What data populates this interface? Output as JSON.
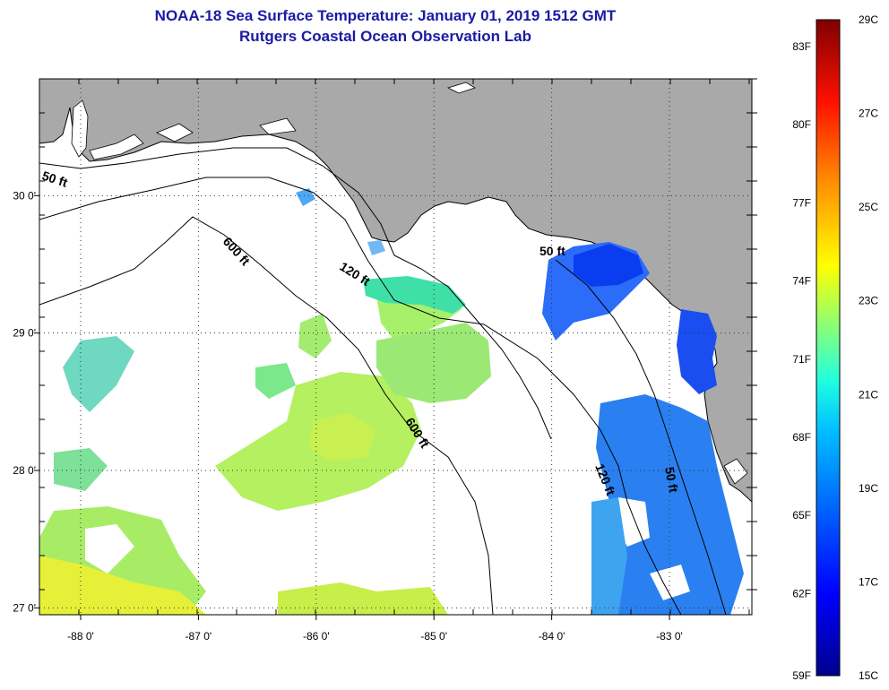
{
  "header": {
    "title": "NOAA-18 Sea Surface Temperature:  January 01, 2019 1512 GMT",
    "subtitle": "Rutgers Coastal Ocean Observation Lab"
  },
  "map": {
    "lon_ticks": [
      {
        "value": -88,
        "label": "-88 0'"
      },
      {
        "value": -87,
        "label": "-87 0'"
      },
      {
        "value": -86,
        "label": "-86 0'"
      },
      {
        "value": -85,
        "label": "-85 0'"
      },
      {
        "value": -84,
        "label": "-84 0'"
      },
      {
        "value": -83,
        "label": "-83 0'"
      }
    ],
    "lat_ticks": [
      {
        "value": 30,
        "label": "30 0'"
      },
      {
        "value": 29,
        "label": "29 0'"
      },
      {
        "value": 28,
        "label": "28 0'"
      },
      {
        "value": 27,
        "label": "27 0'"
      }
    ],
    "lon_range": [
      -88.35,
      -82.3
    ],
    "lat_range": [
      26.95,
      30.85
    ],
    "colors": {
      "land": "#a9a9a9",
      "no_data_ocean": "#ffffff",
      "grid": "#333333"
    },
    "contour_labels": [
      {
        "text": "50 ft",
        "id": "contour-50ft-west"
      },
      {
        "text": "600 ft",
        "id": "contour-600ft-north"
      },
      {
        "text": "120 ft",
        "id": "contour-120ft-north"
      },
      {
        "text": "50 ft",
        "id": "contour-50ft-east"
      },
      {
        "text": "600 ft",
        "id": "contour-600ft-south"
      },
      {
        "text": "120 ft",
        "id": "contour-120ft-south"
      },
      {
        "text": "50 ft",
        "id": "contour-50ft-south"
      }
    ]
  },
  "colorbar": {
    "celsius": [
      "29C",
      "27C",
      "25C",
      "23C",
      "21C",
      "19C",
      "17C",
      "15C"
    ],
    "fahrenheit": [
      "83F",
      "80F",
      "77F",
      "74F",
      "71F",
      "68F",
      "65F",
      "62F",
      "59F"
    ],
    "range_c": [
      15,
      29
    ],
    "stops": [
      "#00008f",
      "#0000ff",
      "#0080ff",
      "#00ffff",
      "#80ff80",
      "#ffff00",
      "#ff8000",
      "#ff0000",
      "#800000"
    ]
  }
}
